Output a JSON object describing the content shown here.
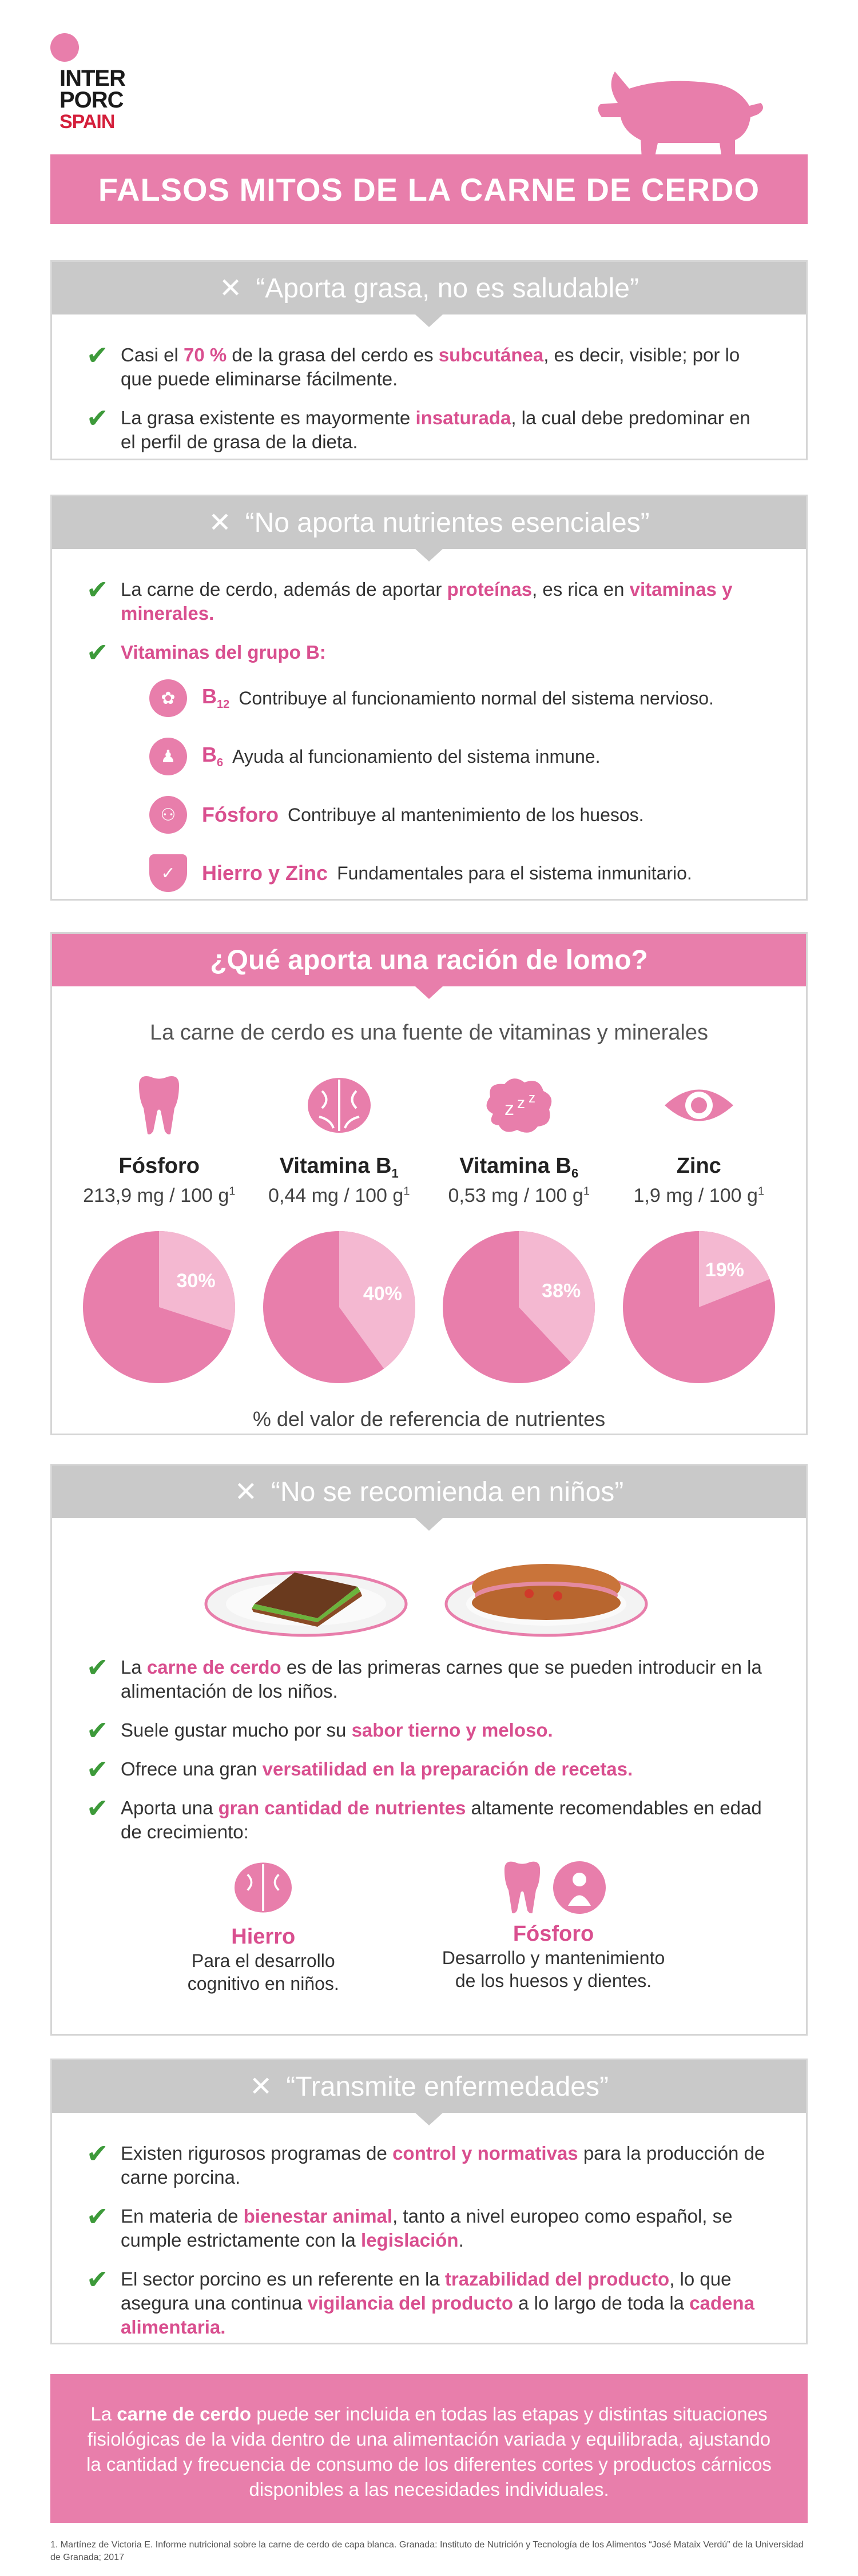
{
  "brand": {
    "line1": "INTER",
    "line2": "PORC",
    "line3": "SPAIN"
  },
  "title": "FALSOS MITOS DE LA CARNE DE CERDO",
  "myth1": {
    "heading": "“Aporta grasa, no es saludable”",
    "items": [
      [
        "Casi el ",
        "70 %",
        " de la grasa del cerdo es ",
        "subcutánea",
        ", es decir, visible; por lo que puede eliminarse fácilmente."
      ],
      [
        "La grasa existente es mayormente ",
        "insaturada",
        ", la cual debe predominar en el perfil de grasa de la dieta."
      ]
    ]
  },
  "myth2": {
    "heading": "“No aporta nutrientes esenciales”",
    "item1": [
      "La carne de cerdo, además de aportar ",
      "proteínas",
      ", es rica en ",
      "vitaminas y minerales."
    ],
    "item2": "Vitaminas del grupo B:",
    "vitamins": [
      {
        "name": "B",
        "sub": "12",
        "text": "Contribuye al funcionamiento normal del sistema nervioso.",
        "icon": "brain-icon"
      },
      {
        "name": "B",
        "sub": "6",
        "text": "Ayuda al funcionamiento del sistema inmune.",
        "icon": "person-icon"
      },
      {
        "name": "Fósforo",
        "sub": "",
        "text": "Contribuye al mantenimiento de los huesos.",
        "icon": "bone-icon"
      },
      {
        "name": "Hierro y Zinc",
        "sub": "",
        "text": "Fundamentales para el sistema inmunitario.",
        "icon": "shield-icon"
      }
    ]
  },
  "nutrients": {
    "heading": "¿Qué aporta una ración de lomo?",
    "intro": "La carne de cerdo es una fuente de vitaminas y minerales",
    "footer": "% del valor de referencia de nutrientes",
    "items": [
      {
        "name": "Fósforo",
        "sub": "",
        "value": "213,9 mg / 100 g",
        "sup": "1",
        "pct": 30,
        "label": "30%",
        "icon": "tooth-icon"
      },
      {
        "name": "Vitamina B",
        "sub": "1",
        "value": "0,44 mg / 100 g",
        "sup": "1",
        "pct": 40,
        "label": "40%",
        "icon": "brain-icon"
      },
      {
        "name": "Vitamina B",
        "sub": "6",
        "value": "0,53 mg / 100 g",
        "sup": "1",
        "pct": 38,
        "label": "38%",
        "icon": "sleep-icon"
      },
      {
        "name": "Zinc",
        "sub": "",
        "value": "1,9 mg / 100 g",
        "sup": "1",
        "pct": 19,
        "label": "19%",
        "icon": "eye-icon"
      }
    ]
  },
  "myth3": {
    "heading": "“No se recomienda en niños”",
    "items": [
      [
        "La ",
        "carne de cerdo",
        " es de las primeras carnes que se pueden introducir en la alimentación de los niños."
      ],
      [
        "Suele gustar mucho por su ",
        "sabor tierno y meloso.",
        ""
      ],
      [
        "Ofrece una gran ",
        "versatilidad en la preparación de recetas.",
        ""
      ],
      [
        "Aporta una ",
        "gran cantidad de nutrientes",
        " altamente recomendables en edad de crecimiento:"
      ]
    ],
    "minerals": [
      {
        "name": "Hierro",
        "text1": "Para el desarrollo",
        "text2": "cognitivo en niños."
      },
      {
        "name": "Fósforo",
        "text1": "Desarrollo y mantenimiento",
        "text2": "de los huesos y dientes."
      }
    ]
  },
  "myth4": {
    "heading": "“Transmite enfermedades”",
    "items": [
      [
        "Existen rigurosos programas de ",
        "control y normativas",
        " para la producción de carne porcina.",
        "",
        ""
      ],
      [
        "En materia de ",
        "bienestar animal",
        ", tanto a nivel europeo como español, se cumple estrictamente con la ",
        "legislación",
        "."
      ],
      [
        "El sector porcino es un referente en la ",
        "trazabilidad del producto",
        ", lo que asegura una continua ",
        "vigilancia del producto",
        " a lo largo de toda la "
      ]
    ],
    "last_tail": "cadena alimentaria."
  },
  "footer": {
    "pre": "La ",
    "bold": "carne de cerdo",
    "post": " puede ser incluida en todas las etapas y distintas situaciones fisiológicas de la vida dentro de una alimentación variada y equilibrada, ajustando la cantidad y frecuencia de consumo de los diferentes cortes y productos cárnicos disponibles a las necesidades individuales."
  },
  "reference": "1. Martínez de Victoria E. Informe nutricional sobre la carne de cerdo de capa blanca. Granada: Instituto de Nutrición y Tecnología de los Alimentos “José Mataix Verdú” de la Universidad de Granada; 2017",
  "colors": {
    "pink": "#e87eab",
    "pink_light": "#f4b8d1",
    "grey": "#c9c9c9",
    "check_green": "#3d9a3a"
  }
}
